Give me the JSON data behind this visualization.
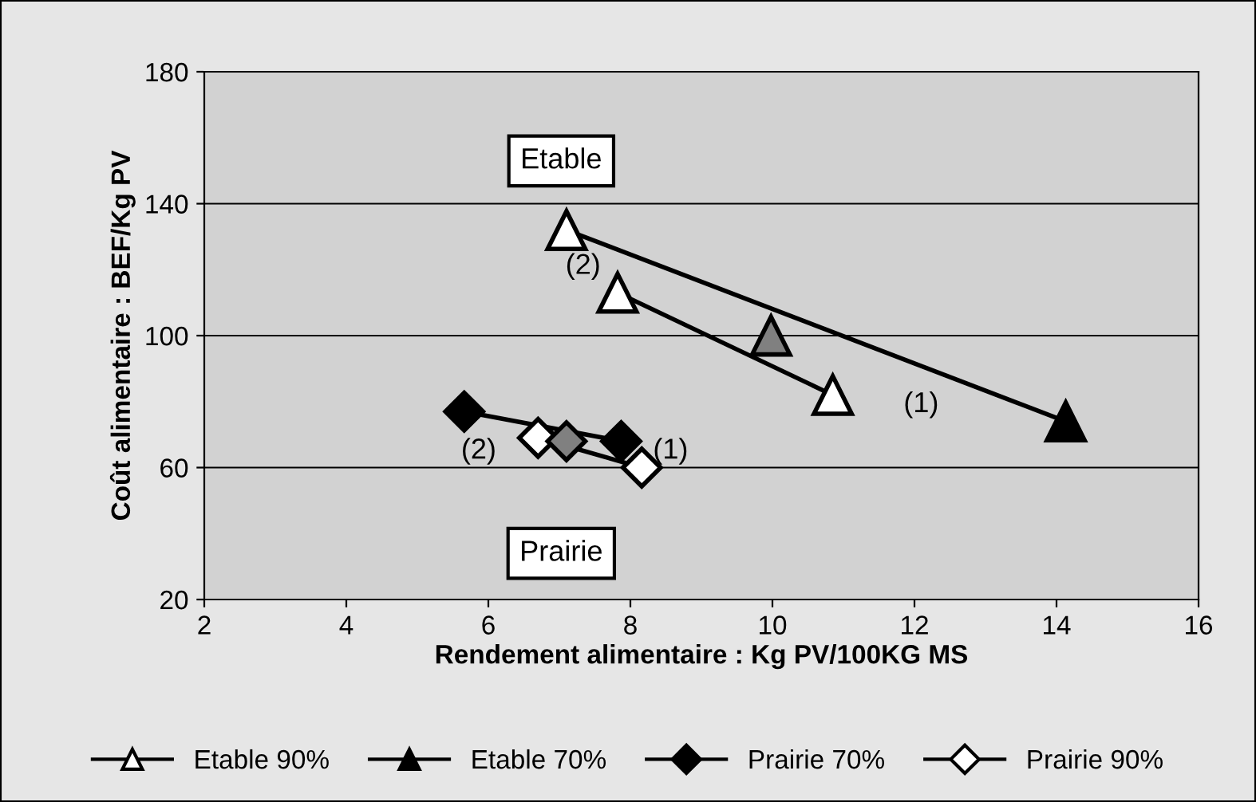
{
  "chart_data": {
    "type": "line",
    "xlabel": "Rendement alimentaire : Kg PV/100KG MS",
    "ylabel": "Coût alimentaire : BEF/Kg PV",
    "xlim": [
      2,
      16
    ],
    "xticks": [
      2,
      4,
      6,
      8,
      10,
      12,
      14,
      16
    ],
    "ylim": [
      20,
      180
    ],
    "yticks": [
      20,
      60,
      100,
      140,
      180
    ],
    "grid": "y",
    "legend": "bottom",
    "series": [
      {
        "name": "Etable 90%",
        "color": "#000000",
        "marker": "triangle",
        "x": [
          7.82,
          10.85
        ],
        "values": [
          113,
          82
        ],
        "colors": [
          "#ffffff",
          "#ffffff"
        ]
      },
      {
        "name": "Etable 70%",
        "color": "#000000",
        "marker": "triangle",
        "x": [
          7.1,
          14.13
        ],
        "values": [
          132,
          74
        ],
        "colors": [
          "#ffffff",
          "#000000"
        ]
      },
      {
        "name": "Prairie 70%",
        "color": "#000000",
        "marker": "diamond",
        "x": [
          5.66,
          7.87
        ],
        "values": [
          77,
          68
        ],
        "colors": [
          "#000000",
          "#000000"
        ]
      },
      {
        "name": "Prairie 90%",
        "color": "#000000",
        "marker": "diamond",
        "x": [
          6.7,
          8.16
        ],
        "values": [
          69,
          60
        ],
        "colors": [
          "#ffffff",
          "#ffffff"
        ]
      },
      {
        "type": "scatter",
        "color": "#808080",
        "marker": "triangle",
        "x": [
          9.98
        ],
        "values": [
          100
        ]
      },
      {
        "type": "scatter",
        "color": "#808080",
        "marker": "diamond",
        "x": [
          7.1
        ],
        "values": [
          68
        ]
      }
    ],
    "annotations": [
      "(2)",
      "(1)",
      "(2)",
      "(1)",
      "Etable",
      "Prairie"
    ]
  }
}
